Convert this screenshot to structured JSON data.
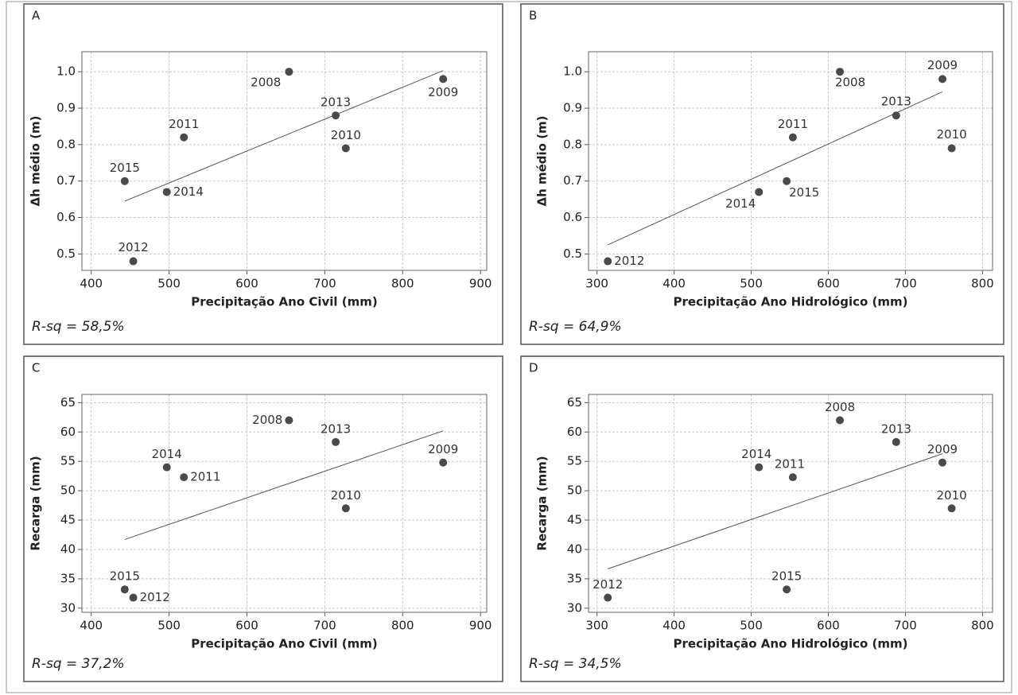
{
  "chart_data": [
    {
      "type": "scatter",
      "panel": "A",
      "xlabel": "Precipitação Ano Civil (mm)",
      "ylabel": "Δh médio (m)",
      "xlim": [
        388,
        908
      ],
      "ylim": [
        0.455,
        1.055
      ],
      "xticks": [
        400,
        500,
        600,
        700,
        800,
        900
      ],
      "yticks": [
        0.5,
        0.6,
        0.7,
        0.8,
        0.9,
        {
          "value": 1,
          "label": "1.0"
        }
      ],
      "grid": true,
      "color": "#4a4a4a",
      "point_labels": [
        "2008",
        "2009",
        "2013",
        "2010",
        "2011",
        "2015",
        "2014",
        "2012"
      ],
      "x": [
        654,
        852,
        714,
        727,
        519,
        443,
        497,
        454
      ],
      "values": [
        1.0,
        0.98,
        0.88,
        0.79,
        0.82,
        0.7,
        0.67,
        0.48
      ],
      "fit": {
        "x": [
          443,
          852
        ],
        "values": [
          0.645,
          1.003
        ],
        "color": "#555555"
      },
      "annotation": "R-sq = 58,5%"
    },
    {
      "type": "scatter",
      "panel": "B",
      "xlabel": "Precipitação Ano Hidrológico (mm)",
      "ylabel": "Δh médio (m)",
      "xlim": [
        289,
        813
      ],
      "ylim": [
        0.455,
        1.055
      ],
      "xticks": [
        300,
        400,
        500,
        600,
        700,
        800
      ],
      "yticks": [
        0.5,
        0.6,
        0.7,
        0.8,
        0.9,
        {
          "value": 1,
          "label": "1.0"
        }
      ],
      "grid": true,
      "color": "#4a4a4a",
      "point_labels": [
        "2008",
        "2009",
        "2013",
        "2010",
        "2011",
        "2015",
        "2014",
        "2012"
      ],
      "x": [
        615,
        748,
        688,
        760,
        554,
        546,
        510,
        314
      ],
      "values": [
        1.0,
        0.98,
        0.88,
        0.79,
        0.82,
        0.7,
        0.67,
        0.48
      ],
      "fit": {
        "x": [
          314,
          748
        ],
        "values": [
          0.525,
          0.945
        ],
        "color": "#555555"
      },
      "annotation": "R-sq = 64,9%"
    },
    {
      "type": "scatter",
      "panel": "C",
      "xlabel": "Precipitação Ano Civil (mm)",
      "ylabel": "Recarga (mm)",
      "xlim": [
        388,
        908
      ],
      "ylim": [
        29.3,
        66.4
      ],
      "xticks": [
        400,
        500,
        600,
        700,
        800,
        900
      ],
      "yticks": [
        30,
        35,
        40,
        45,
        50,
        55,
        60,
        65
      ],
      "grid": true,
      "color": "#4a4a4a",
      "point_labels": [
        "2008",
        "2009",
        "2013",
        "2010",
        "2011",
        "2015",
        "2014",
        "2012"
      ],
      "x": [
        654,
        852,
        714,
        727,
        519,
        443,
        497,
        454
      ],
      "values": [
        62,
        54.8,
        58.3,
        47,
        52.3,
        33.2,
        54,
        31.8
      ],
      "fit": {
        "x": [
          443,
          852
        ],
        "values": [
          41.7,
          60.2
        ],
        "color": "#555555"
      },
      "annotation": "R-sq = 37,2%"
    },
    {
      "type": "scatter",
      "panel": "D",
      "xlabel": "Precipitação Ano Hidrológico (mm)",
      "ylabel": "Recarga (mm)",
      "xlim": [
        289,
        813
      ],
      "ylim": [
        29.3,
        66.4
      ],
      "xticks": [
        300,
        400,
        500,
        600,
        700,
        800
      ],
      "yticks": [
        30,
        35,
        40,
        45,
        50,
        55,
        60,
        65
      ],
      "grid": true,
      "color": "#4a4a4a",
      "point_labels": [
        "2008",
        "2009",
        "2013",
        "2010",
        "2011",
        "2015",
        "2014",
        "2012"
      ],
      "x": [
        615,
        748,
        688,
        760,
        554,
        546,
        510,
        314
      ],
      "values": [
        62,
        54.8,
        58.3,
        47,
        52.3,
        33.2,
        54,
        31.8
      ],
      "fit": {
        "x": [
          314,
          748
        ],
        "values": [
          36.7,
          56.3
        ],
        "color": "#555555"
      },
      "annotation": "R-sq = 34,5%"
    }
  ]
}
